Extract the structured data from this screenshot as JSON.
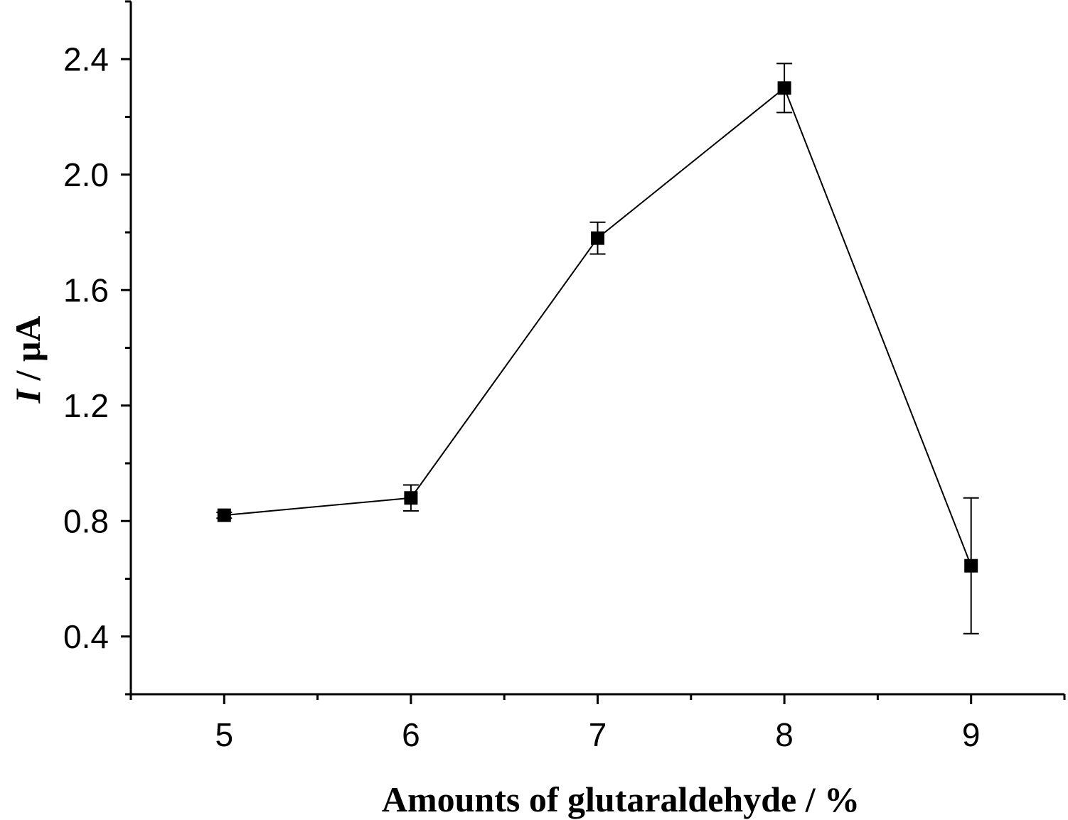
{
  "chart_data": {
    "type": "line",
    "xlabel": "Amounts of glutaraldehyde / %",
    "ylabel": {
      "symbol": "I",
      "unit": " / μA"
    },
    "xlim": [
      4.5,
      9.5
    ],
    "ylim": [
      0.2,
      2.6
    ],
    "x_ticks": [
      5,
      6,
      7,
      8,
      9
    ],
    "x_tick_labels": [
      "5",
      "6",
      "7",
      "8",
      "9"
    ],
    "x_minor_ticks": [
      4.5,
      5.5,
      6.5,
      7.5,
      8.5,
      9.5
    ],
    "y_ticks": [
      0.4,
      0.8,
      1.2,
      1.6,
      2.0,
      2.4
    ],
    "y_tick_labels": [
      "0.4",
      "0.8",
      "1.2",
      "1.6",
      "2.0",
      "2.4"
    ],
    "y_minor_ticks": [
      0.2,
      0.6,
      1.0,
      1.4,
      1.8,
      2.2,
      2.6
    ],
    "grid": false,
    "legend": "none",
    "series": [
      {
        "marker": "square",
        "color": "#000000",
        "x": [
          5,
          6,
          7,
          8,
          9
        ],
        "y": [
          0.82,
          0.88,
          1.78,
          2.3,
          0.645
        ],
        "error": [
          0.01,
          0.045,
          0.055,
          0.085,
          0.235
        ]
      }
    ]
  }
}
